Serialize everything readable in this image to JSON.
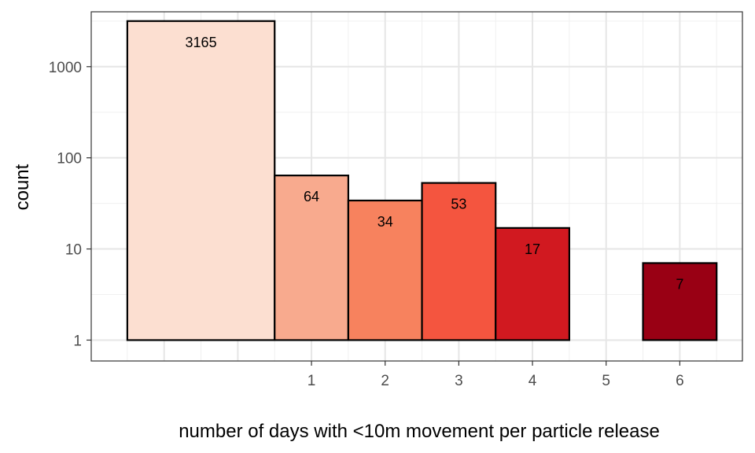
{
  "chart_data": {
    "type": "bar",
    "title": "",
    "xlabel": "number of days with <10m movement per particle release",
    "ylabel": "count",
    "y_scale": "log10",
    "ylim": [
      0.59,
      4000
    ],
    "xlim": [
      -1.99,
      6.85
    ],
    "x_ticks": [
      1,
      2,
      3,
      4,
      5,
      6
    ],
    "y_ticks": [
      1,
      10,
      100,
      1000
    ],
    "y_tick_labels": [
      "1",
      "10",
      "100",
      "1000"
    ],
    "grid": true,
    "legend": "none",
    "baseline": 1,
    "bars": [
      {
        "x_start": -1.5,
        "x_end": 0.5,
        "value": 3165,
        "label": "3165",
        "color": "#FCDFD1"
      },
      {
        "x_start": 0.5,
        "x_end": 1.5,
        "value": 64,
        "label": "64",
        "color": "#F8AA8E"
      },
      {
        "x_start": 1.5,
        "x_end": 2.5,
        "value": 34,
        "label": "34",
        "color": "#F7825E"
      },
      {
        "x_start": 2.5,
        "x_end": 3.5,
        "value": 53,
        "label": "53",
        "color": "#F4553F"
      },
      {
        "x_start": 3.5,
        "x_end": 4.5,
        "value": 17,
        "label": "17",
        "color": "#D11920"
      },
      {
        "x_start": 5.5,
        "x_end": 6.5,
        "value": 7,
        "label": "7",
        "color": "#990014"
      }
    ]
  }
}
